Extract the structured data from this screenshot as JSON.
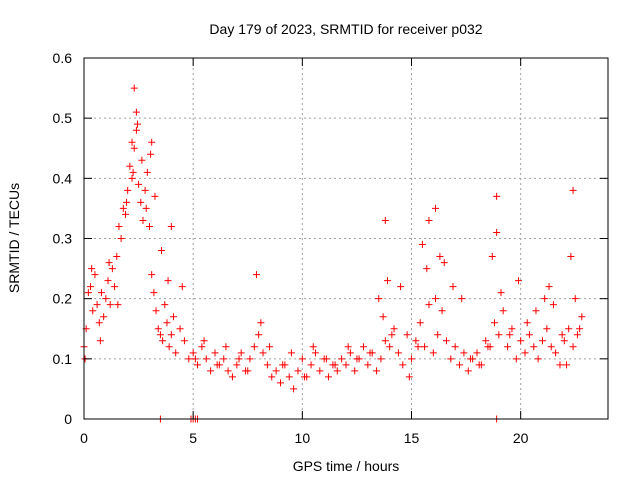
{
  "chart_data": {
    "type": "scatter",
    "title": "Day 179 of 2023, SRMTID for receiver p032",
    "xlabel": "GPS time / hours",
    "ylabel": "SRMTID / TECUs",
    "xlim": [
      0,
      24
    ],
    "ylim": [
      0,
      0.6
    ],
    "xticks": [
      0,
      5,
      10,
      15,
      20
    ],
    "yticks": [
      0,
      0.1,
      0.2,
      0.3,
      0.4,
      0.5,
      0.6
    ],
    "xtick_labels": [
      "0",
      "5",
      "10",
      "15",
      "20"
    ],
    "ytick_labels": [
      "0",
      "0.1",
      "0.2",
      "0.3",
      "0.4",
      "0.5",
      "0.6"
    ],
    "grid": true,
    "marker": "+",
    "color": "#ff0000",
    "series": [
      {
        "name": "SRMTID",
        "x": [
          0.0,
          0.1,
          0.2,
          0.3,
          0.4,
          0.5,
          0.6,
          0.7,
          0.8,
          0.9,
          1.0,
          1.1,
          1.2,
          1.3,
          1.4,
          1.5,
          1.6,
          1.7,
          1.8,
          1.9,
          2.0,
          2.1,
          2.2,
          2.3,
          2.4,
          2.5,
          2.6,
          2.7,
          2.8,
          2.9,
          3.0,
          3.1,
          3.2,
          3.3,
          3.4,
          3.5,
          3.6,
          3.7,
          3.8,
          3.9,
          4.0,
          4.2,
          4.4,
          4.6,
          4.8,
          5.0,
          5.2,
          5.4,
          5.6,
          5.8,
          6.0,
          6.2,
          6.4,
          6.6,
          6.8,
          7.0,
          7.2,
          7.4,
          7.6,
          7.8,
          8.0,
          8.2,
          8.4,
          8.6,
          8.8,
          9.0,
          9.2,
          9.4,
          9.6,
          9.8,
          10.0,
          10.2,
          10.4,
          10.6,
          10.8,
          11.0,
          11.2,
          11.4,
          11.6,
          11.8,
          12.0,
          12.2,
          12.4,
          12.6,
          12.8,
          13.0,
          13.2,
          13.4,
          13.6,
          13.8,
          14.0,
          14.2,
          14.4,
          14.6,
          14.8,
          15.0,
          15.2,
          15.4,
          15.6,
          15.8,
          16.0,
          16.2,
          16.4,
          16.6,
          16.8,
          17.0,
          17.2,
          17.4,
          17.6,
          17.8,
          18.0,
          18.2,
          18.4,
          18.6,
          18.8,
          19.0,
          19.2,
          19.4,
          19.6,
          19.8,
          20.0,
          20.2,
          20.4,
          20.6,
          20.8,
          21.0,
          21.2,
          21.4,
          21.6,
          21.8,
          22.0,
          22.2,
          22.4,
          22.6,
          22.8,
          0.05,
          0.35,
          0.75,
          1.15,
          1.55,
          1.95,
          2.25,
          2.45,
          2.65,
          2.85,
          3.05,
          3.25,
          3.55,
          3.85,
          4.1,
          4.5,
          5.1,
          5.5,
          6.1,
          6.5,
          7.1,
          7.5,
          7.9,
          8.1,
          8.5,
          9.1,
          9.5,
          10.1,
          10.5,
          11.1,
          11.5,
          12.1,
          12.5,
          13.1,
          13.5,
          13.7,
          13.9,
          14.1,
          14.5,
          14.9,
          15.3,
          15.5,
          15.7,
          16.1,
          16.3,
          16.5,
          16.9,
          17.3,
          17.7,
          18.1,
          18.5,
          18.7,
          18.9,
          19.1,
          19.5,
          19.9,
          20.3,
          20.7,
          21.1,
          21.3,
          21.5,
          21.9,
          22.1,
          22.3,
          22.5,
          22.7,
          2.3,
          2.4,
          2.2,
          3.1,
          4.0,
          13.8,
          15.8,
          16.1,
          18.9,
          22.4,
          3.5,
          4.9,
          5.0,
          5.1,
          5.2,
          18.9
        ],
        "y": [
          0.12,
          0.15,
          0.21,
          0.22,
          0.18,
          0.24,
          0.19,
          0.16,
          0.21,
          0.17,
          0.2,
          0.23,
          0.19,
          0.25,
          0.22,
          0.27,
          0.32,
          0.3,
          0.35,
          0.34,
          0.38,
          0.42,
          0.4,
          0.45,
          0.48,
          0.39,
          0.36,
          0.33,
          0.38,
          0.41,
          0.32,
          0.24,
          0.21,
          0.18,
          0.15,
          0.14,
          0.13,
          0.19,
          0.16,
          0.12,
          0.14,
          0.11,
          0.15,
          0.13,
          0.1,
          0.11,
          0.09,
          0.12,
          0.1,
          0.08,
          0.11,
          0.09,
          0.1,
          0.08,
          0.07,
          0.09,
          0.11,
          0.08,
          0.1,
          0.12,
          0.14,
          0.11,
          0.09,
          0.07,
          0.08,
          0.06,
          0.09,
          0.07,
          0.05,
          0.08,
          0.1,
          0.07,
          0.09,
          0.11,
          0.08,
          0.1,
          0.07,
          0.09,
          0.08,
          0.1,
          0.09,
          0.11,
          0.08,
          0.1,
          0.12,
          0.09,
          0.11,
          0.08,
          0.1,
          0.13,
          0.12,
          0.15,
          0.11,
          0.09,
          0.14,
          0.1,
          0.13,
          0.16,
          0.12,
          0.19,
          0.11,
          0.14,
          0.18,
          0.13,
          0.1,
          0.12,
          0.09,
          0.11,
          0.08,
          0.1,
          0.11,
          0.09,
          0.13,
          0.12,
          0.16,
          0.14,
          0.18,
          0.12,
          0.15,
          0.1,
          0.13,
          0.11,
          0.14,
          0.12,
          0.1,
          0.13,
          0.15,
          0.12,
          0.11,
          0.09,
          0.13,
          0.15,
          0.12,
          0.14,
          0.17,
          0.1,
          0.25,
          0.13,
          0.26,
          0.19,
          0.36,
          0.41,
          0.49,
          0.43,
          0.35,
          0.44,
          0.37,
          0.28,
          0.23,
          0.17,
          0.22,
          0.1,
          0.13,
          0.09,
          0.12,
          0.1,
          0.08,
          0.24,
          0.16,
          0.12,
          0.09,
          0.11,
          0.07,
          0.12,
          0.1,
          0.09,
          0.12,
          0.1,
          0.11,
          0.2,
          0.17,
          0.23,
          0.14,
          0.22,
          0.07,
          0.12,
          0.29,
          0.25,
          0.2,
          0.27,
          0.26,
          0.22,
          0.2,
          0.1,
          0.09,
          0.12,
          0.27,
          0.31,
          0.21,
          0.14,
          0.23,
          0.16,
          0.18,
          0.2,
          0.22,
          0.19,
          0.14,
          0.09,
          0.27,
          0.2,
          0.15,
          0.55,
          0.51,
          0.46,
          0.46,
          0.32,
          0.33,
          0.33,
          0.35,
          0.37,
          0.38,
          0.0,
          0.0,
          0.0,
          0.0,
          0.0,
          0.0
        ]
      }
    ]
  }
}
